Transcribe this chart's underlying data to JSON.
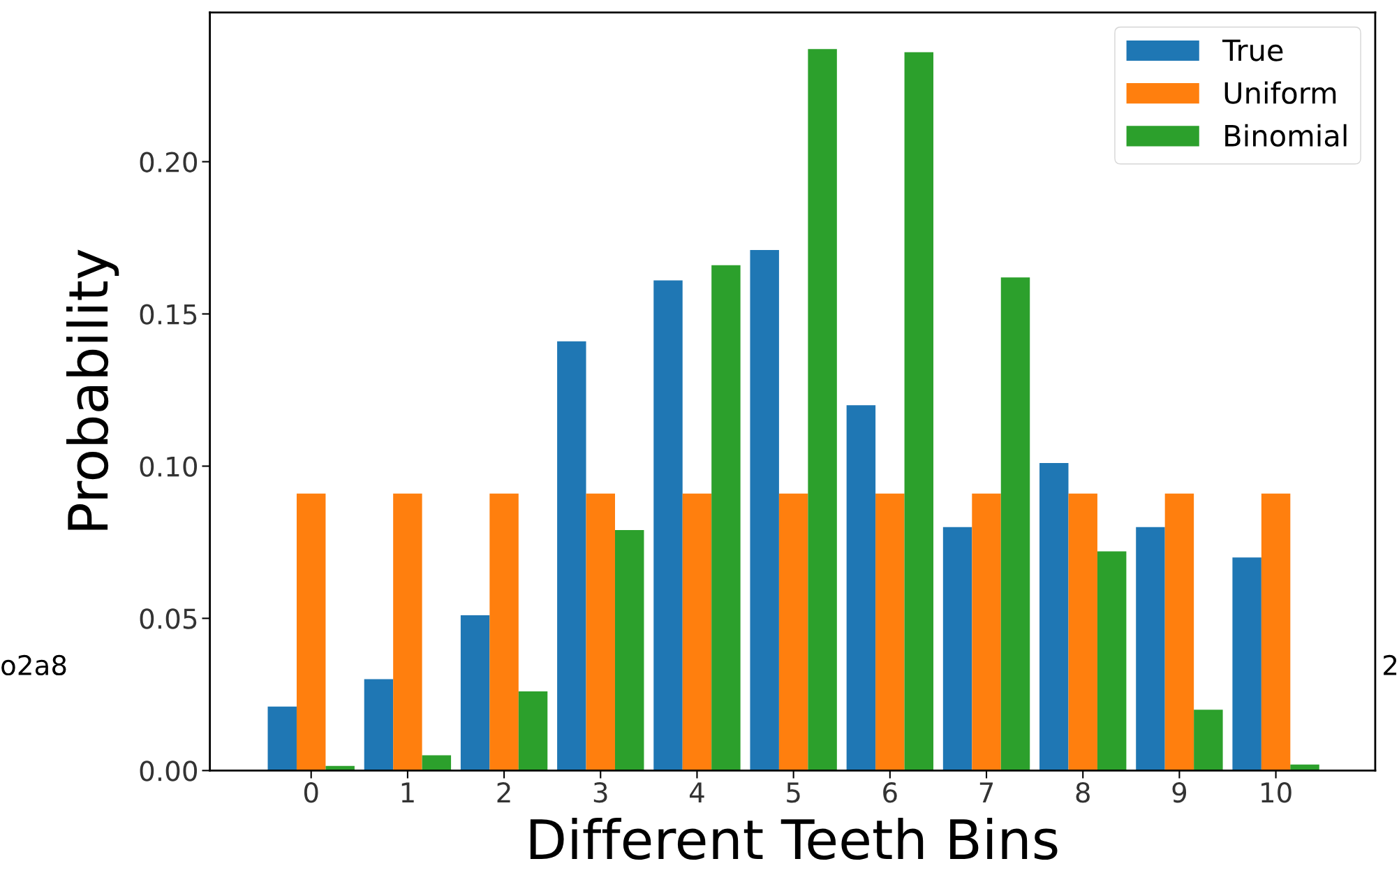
{
  "chart_data": {
    "type": "bar",
    "xlabel": "Different Teeth Bins",
    "ylabel": "Probability",
    "categories": [
      "0",
      "1",
      "2",
      "3",
      "4",
      "5",
      "6",
      "7",
      "8",
      "9",
      "10"
    ],
    "series": [
      {
        "name": "True",
        "color": "#1f77b4",
        "values": [
          0.021,
          0.03,
          0.051,
          0.141,
          0.161,
          0.171,
          0.12,
          0.08,
          0.101,
          0.08,
          0.07
        ]
      },
      {
        "name": "Uniform",
        "color": "#ff7f0e",
        "values": [
          0.091,
          0.091,
          0.091,
          0.091,
          0.091,
          0.091,
          0.091,
          0.091,
          0.091,
          0.091,
          0.091
        ]
      },
      {
        "name": "Binomial",
        "color": "#2ca02c",
        "values": [
          0.0015,
          0.005,
          0.026,
          0.079,
          0.166,
          0.237,
          0.236,
          0.162,
          0.072,
          0.02,
          0.002
        ]
      }
    ],
    "ylim": [
      0,
      0.249
    ],
    "yticks": [
      {
        "value": 0,
        "label": "0.00"
      },
      {
        "value": 0.05,
        "label": "0.05"
      },
      {
        "value": 0.1,
        "label": "0.10"
      },
      {
        "value": 0.15,
        "label": "0.15"
      },
      {
        "value": 0.2,
        "label": "0.20"
      }
    ],
    "legend": "top right",
    "grid": false,
    "annotations": [
      "o2a8",
      "2"
    ]
  }
}
